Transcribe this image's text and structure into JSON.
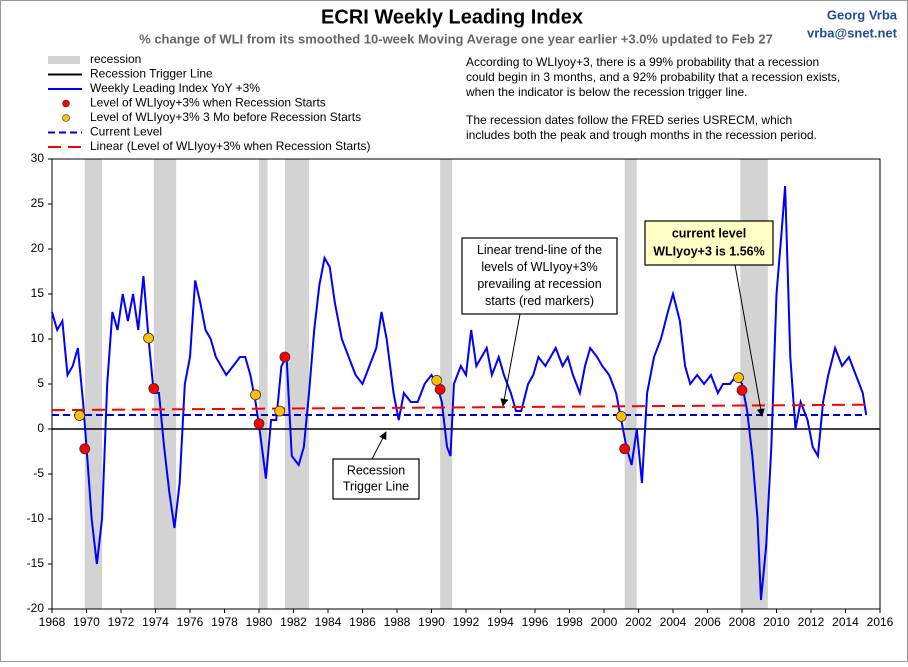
{
  "chart_data": {
    "type": "line",
    "title": "ECRI Weekly Leading Index",
    "subtitle": "% change of WLI from its smoothed 10-week Moving Average one year earlier +3.0% updated to Feb 27",
    "author": [
      "Georg Vrba",
      "vrba@snet.net"
    ],
    "notes": [
      "According to WLIyoy+3, there is a 99% probability that a recession",
      "could begin in 3 months, and a 92% probability that a recession exists,",
      "when the indicator is below the recession trigger line.",
      "The recession dates follow the FRED series USRECM, which",
      "includes both the peak and trough months in the recession period."
    ],
    "xlim": [
      1968,
      2016
    ],
    "xticks": [
      1968,
      1970,
      1972,
      1974,
      1976,
      1978,
      1980,
      1982,
      1984,
      1986,
      1988,
      1990,
      1992,
      1994,
      1996,
      1998,
      2000,
      2002,
      2004,
      2006,
      2008,
      2010,
      2012,
      2014,
      2016
    ],
    "ylim": [
      -20,
      30
    ],
    "yticks": [
      -20,
      -15,
      -10,
      -5,
      0,
      5,
      10,
      15,
      20,
      25,
      30
    ],
    "recessions": {
      "name": "recession",
      "color": "#d3d3d3",
      "spans": [
        [
          1969.9,
          1970.9
        ],
        [
          1973.9,
          1975.2
        ],
        [
          1980.0,
          1980.5
        ],
        [
          1981.5,
          1982.9
        ],
        [
          1990.5,
          1991.2
        ],
        [
          2001.2,
          2001.9
        ],
        [
          2007.9,
          2009.5
        ]
      ]
    },
    "series": [
      {
        "name": "Recession Trigger Line",
        "color": "#000000",
        "style": "line",
        "x": [
          1968,
          2016
        ],
        "values": [
          0,
          0
        ]
      },
      {
        "name": "Weekly Leading Index YoY +3%",
        "color": "#0000ff",
        "style": "line",
        "x": [
          1968.0,
          1968.3,
          1968.6,
          1968.9,
          1969.2,
          1969.5,
          1969.8,
          1970.0,
          1970.3,
          1970.6,
          1970.9,
          1971.2,
          1971.5,
          1971.8,
          1972.1,
          1972.4,
          1972.7,
          1973.0,
          1973.3,
          1973.6,
          1973.9,
          1974.2,
          1974.5,
          1974.8,
          1975.1,
          1975.4,
          1975.7,
          1976.0,
          1976.3,
          1976.6,
          1976.9,
          1977.2,
          1977.5,
          1977.8,
          1978.1,
          1978.5,
          1978.9,
          1979.2,
          1979.5,
          1979.8,
          1980.1,
          1980.4,
          1980.7,
          1981.0,
          1981.3,
          1981.6,
          1981.9,
          1982.3,
          1982.6,
          1982.9,
          1983.2,
          1983.5,
          1983.8,
          1984.1,
          1984.4,
          1984.8,
          1985.2,
          1985.6,
          1986.0,
          1986.4,
          1986.8,
          1987.1,
          1987.4,
          1987.8,
          1988.1,
          1988.4,
          1988.8,
          1989.2,
          1989.6,
          1990.0,
          1990.3,
          1990.6,
          1990.9,
          1991.1,
          1991.3,
          1991.7,
          1992.0,
          1992.3,
          1992.6,
          1992.9,
          1993.2,
          1993.5,
          1993.9,
          1994.2,
          1994.6,
          1994.9,
          1995.2,
          1995.6,
          1995.9,
          1996.2,
          1996.6,
          1996.9,
          1997.2,
          1997.6,
          1997.9,
          1998.2,
          1998.6,
          1998.9,
          1999.2,
          1999.6,
          1999.9,
          2000.3,
          2000.7,
          2001.0,
          2001.3,
          2001.6,
          2001.9,
          2002.2,
          2002.5,
          2002.9,
          2003.3,
          2003.7,
          2004.0,
          2004.4,
          2004.7,
          2005.0,
          2005.4,
          2005.8,
          2006.2,
          2006.6,
          2006.9,
          2007.3,
          2007.7,
          2008.0,
          2008.3,
          2008.6,
          2008.9,
          2009.1,
          2009.4,
          2009.7,
          2010.0,
          2010.3,
          2010.5,
          2010.8,
          2011.1,
          2011.4,
          2011.8,
          2012.1,
          2012.4,
          2012.7,
          2013.0,
          2013.4,
          2013.8,
          2014.2,
          2014.6,
          2015.0,
          2015.2
        ],
        "values": [
          13,
          11,
          12,
          6,
          7,
          9,
          3,
          -2,
          -10,
          -15,
          -10,
          5,
          13,
          11,
          15,
          12,
          15,
          11,
          17,
          10,
          4,
          4,
          -2,
          -7,
          -11,
          -6,
          5,
          8,
          16.5,
          14,
          11,
          10,
          8,
          7,
          6,
          7,
          8,
          8,
          6,
          3,
          -1,
          -5.5,
          1,
          1,
          7,
          8,
          -3,
          -4,
          -2,
          4,
          11,
          16,
          19,
          18,
          14,
          10,
          8,
          6,
          5,
          7,
          9,
          13,
          10,
          4,
          1,
          4,
          3,
          3,
          5,
          6,
          5,
          3,
          -2,
          -3,
          5,
          7,
          6,
          11,
          7,
          8,
          9,
          6,
          8,
          6,
          4,
          2,
          2,
          5,
          6,
          8,
          7,
          8,
          9,
          7,
          8,
          6,
          4,
          7,
          9,
          8,
          7,
          6,
          4,
          1,
          -2,
          -4,
          0,
          -6,
          4,
          8,
          10,
          13,
          15,
          12,
          7,
          5,
          6,
          5,
          6,
          4,
          5,
          5,
          6,
          5,
          2,
          -3,
          -10,
          -19,
          -13,
          -2,
          15,
          22,
          27,
          8,
          0,
          3,
          1,
          -2,
          -3,
          3,
          6,
          9,
          7,
          8,
          6,
          4,
          1.56
        ]
      },
      {
        "name": "Level of WLIyoy+3% when Recession Starts",
        "color": "#ff0000",
        "style": "marker",
        "x": [
          1969.9,
          1973.9,
          1980.0,
          1981.5,
          1990.5,
          2001.2,
          2008.0
        ],
        "values": [
          -2.2,
          4.5,
          0.6,
          8.0,
          4.4,
          -2.2,
          4.3
        ]
      },
      {
        "name": "Level of WLIyoy+3% 3 Mo before Recession Starts",
        "color": "#ffc000",
        "style": "marker",
        "x": [
          1969.6,
          1973.6,
          1979.8,
          1981.2,
          1990.3,
          2001.0,
          2007.8
        ],
        "values": [
          1.5,
          10.1,
          3.8,
          2.0,
          5.4,
          1.4,
          5.7
        ]
      },
      {
        "name": "Current Level",
        "color": "#0000cc",
        "style": "dash",
        "x": [
          1968,
          2015.2
        ],
        "values": [
          1.56,
          1.56
        ]
      },
      {
        "name": "Linear (Level of WLIyoy+3% when Recession Starts)",
        "color": "#ff0000",
        "style": "longdash",
        "x": [
          1968,
          2015.2
        ],
        "values": [
          2.1,
          2.7
        ]
      }
    ],
    "annotations": [
      {
        "lines": [
          "Linear trend-line of the",
          "levels of WLIyoy+3%",
          "prevailing at recession",
          "starts (red markers)"
        ]
      },
      {
        "lines": [
          "current level",
          "WLIyoy+3 is 1.56%"
        ]
      },
      {
        "lines": [
          "Recession",
          "Trigger Line"
        ]
      }
    ]
  }
}
